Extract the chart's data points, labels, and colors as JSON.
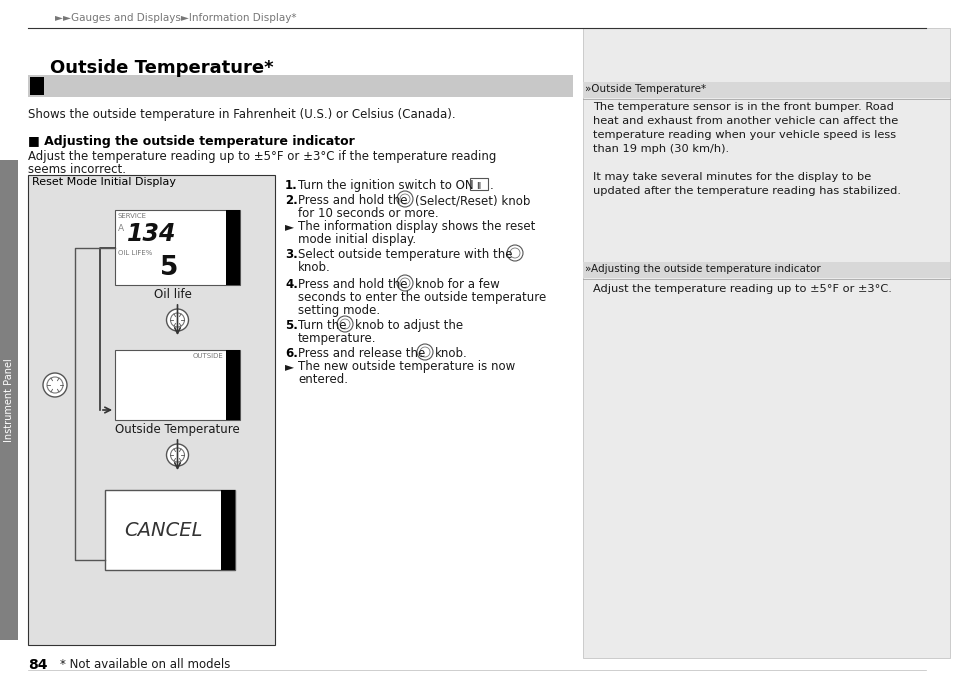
{
  "white": "#ffffff",
  "black": "#000000",
  "dark_gray": "#1a1a1a",
  "mid_gray": "#555555",
  "light_gray": "#aaaaaa",
  "sidebar_gray": "#808080",
  "panel_bg": "#ebebeb",
  "title_bar_bg": "#c8c8c8",
  "breadcrumb": "►►Gauges and Displays►Information Display*",
  "title": "Outside Temperature*",
  "subtitle": "Shows the outside temperature in Fahrenheit (U.S.) or Celsius (Canada).",
  "section_title": "■ Adjusting the outside temperature indicator",
  "section_body1": "Adjust the temperature reading up to ±5°F or ±3°C if the temperature reading",
  "section_body2": "seems incorrect.",
  "diagram_title": "Reset Mode Initial Display",
  "oil_life_label": "Oil life",
  "outside_temp_label": "Outside Temperature",
  "right_header1": "»Outside Temperature*",
  "right_body1_lines": [
    "The temperature sensor is in the front bumper. Road",
    "heat and exhaust from another vehicle can affect the",
    "temperature reading when your vehicle speed is less",
    "than 19 mph (30 km/h).",
    "",
    "It may take several minutes for the display to be",
    "updated after the temperature reading has stabilized."
  ],
  "right_header2": "»Adjusting the outside temperature indicator",
  "right_body2": "Adjust the temperature reading up to ±5°F or ±3°C.",
  "page_number": "84",
  "footnote": "* Not available on all models",
  "sidebar_text": "Instrument Panel",
  "step1": "1. Turn the ignition switch to ON ‖.",
  "step2a": "2. Press and hold the     (Select/Reset) knob",
  "step2b": "for 10 seconds or more.",
  "step2c": "► The information display shows the reset",
  "step2d": "mode initial display.",
  "step3a": "3. Select outside temperature with the",
  "step3b": "knob.",
  "step4a": "4. Press and hold the     knob for a few",
  "step4b": "seconds to enter the outside temperature",
  "step4c": "setting mode.",
  "step5a": "5. Turn the     knob to adjust the",
  "step5b": "temperature.",
  "step6a": "6. Press and release the     knob.",
  "step6b": "► The new outside temperature is now",
  "step6c": "entered."
}
